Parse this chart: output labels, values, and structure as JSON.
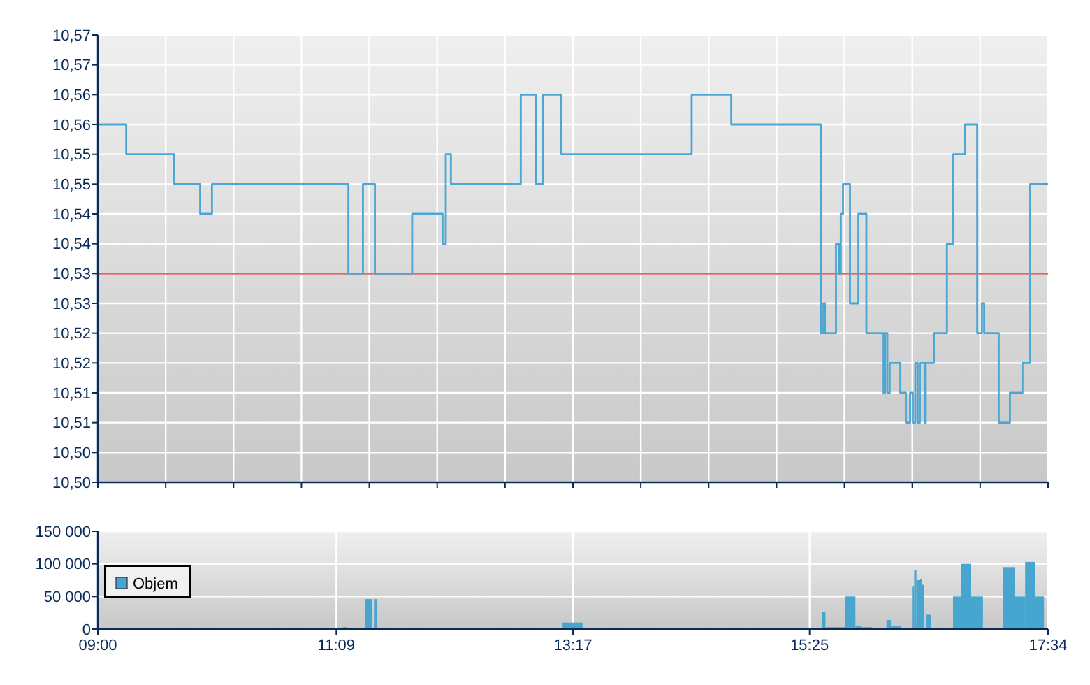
{
  "chart_data": [
    {
      "type": "step",
      "xlim": [
        9,
        17.5667
      ],
      "ylim": [
        10.5,
        10.575
      ],
      "tick_labels": "y",
      "grid": true,
      "xticks": [
        {
          "value": 9,
          "label": null
        },
        {
          "value": 9.6119,
          "label": null
        },
        {
          "value": 10.2238,
          "label": null
        },
        {
          "value": 10.8357,
          "label": null
        },
        {
          "value": 11.4476,
          "label": null
        },
        {
          "value": 12.0595,
          "label": null
        },
        {
          "value": 12.6714,
          "label": null
        },
        {
          "value": 13.2833,
          "label": null
        },
        {
          "value": 13.8952,
          "label": null
        },
        {
          "value": 14.5071,
          "label": null
        },
        {
          "value": 15.119,
          "label": null
        },
        {
          "value": 15.7309,
          "label": null
        },
        {
          "value": 16.3428,
          "label": null
        },
        {
          "value": 16.9547,
          "label": null
        },
        {
          "value": 17.5667,
          "label": null
        }
      ],
      "yticks": [
        {
          "value": 10.5,
          "label": "10,50"
        },
        {
          "value": 10.505,
          "label": "10,50"
        },
        {
          "value": 10.51,
          "label": "10,51"
        },
        {
          "value": 10.515,
          "label": "10,51"
        },
        {
          "value": 10.52,
          "label": "10,52"
        },
        {
          "value": 10.525,
          "label": "10,52"
        },
        {
          "value": 10.53,
          "label": "10,53"
        },
        {
          "value": 10.535,
          "label": "10,53"
        },
        {
          "value": 10.54,
          "label": "10,54"
        },
        {
          "value": 10.545,
          "label": "10,54"
        },
        {
          "value": 10.55,
          "label": "10,55"
        },
        {
          "value": 10.555,
          "label": "10,55"
        },
        {
          "value": 10.56,
          "label": "10,56"
        },
        {
          "value": 10.565,
          "label": "10,56"
        },
        {
          "value": 10.57,
          "label": "10,57"
        },
        {
          "value": 10.575,
          "label": "10,57"
        }
      ],
      "ref_lines": [
        {
          "axis": "y",
          "value": 10.535,
          "color": "#e06666"
        }
      ],
      "series": [
        {
          "color": "#4aa6d4",
          "x": [
            9,
            9.256,
            9.689,
            9.923,
            10.029,
            11.259,
            11.39,
            11.498,
            11.834,
            12.108,
            12.137,
            12.183,
            12.813,
            12.947,
            13.01,
            13.179,
            14.354,
            14.711,
            15.517,
            15.542,
            15.555,
            15.655,
            15.685,
            15.698,
            15.718,
            15.781,
            15.857,
            15.929,
            16.084,
            16.097,
            16.118,
            16.139,
            16.235,
            16.285,
            16.323,
            16.348,
            16.37,
            16.391,
            16.411,
            16.454,
            16.464,
            16.537,
            16.655,
            16.713,
            16.819,
            16.928,
            16.97,
            16.991,
            17.122,
            17.223,
            17.336,
            17.406,
            17.5667
          ],
          "values": [
            10.56,
            10.555,
            10.55,
            10.545,
            10.55,
            10.535,
            10.55,
            10.535,
            10.545,
            10.54,
            10.555,
            10.55,
            10.565,
            10.55,
            10.565,
            10.555,
            10.565,
            10.56,
            10.525,
            10.53,
            10.525,
            10.54,
            10.535,
            10.545,
            10.55,
            10.53,
            10.545,
            10.525,
            10.515,
            10.525,
            10.515,
            10.52,
            10.515,
            10.51,
            10.515,
            10.51,
            10.52,
            10.51,
            10.52,
            10.51,
            10.52,
            10.525,
            10.54,
            10.555,
            10.56,
            10.525,
            10.53,
            10.525,
            10.51,
            10.515,
            10.52,
            10.55,
            10.55
          ]
        }
      ]
    },
    {
      "type": "histogram",
      "xlim": [
        9,
        17.5667
      ],
      "ylim": [
        0,
        150000
      ],
      "grid": true,
      "legend": "left",
      "xticks": [
        {
          "value": 9,
          "label": "09:00"
        },
        {
          "value": 11.15,
          "label": "11:09"
        },
        {
          "value": 13.2833,
          "label": "13:17"
        },
        {
          "value": 15.4167,
          "label": "15:25"
        },
        {
          "value": 17.5667,
          "label": "17:34"
        }
      ],
      "yticks": [
        {
          "value": 0,
          "label": "0"
        },
        {
          "value": 50000,
          "label": "50 000"
        },
        {
          "value": 100000,
          "label": "100 000"
        },
        {
          "value": 150000,
          "label": "150 000"
        }
      ],
      "bins": [
        11.21,
        11.25,
        11.41,
        11.47,
        11.49,
        11.52,
        13.19,
        13.37,
        13.42,
        14.05,
        15.19,
        15.53,
        15.56,
        15.74,
        15.83,
        15.88,
        15.98,
        16.11,
        16.15,
        16.24,
        16.34,
        16.36,
        16.38,
        16.41,
        16.43,
        16.45,
        16.47,
        16.51,
        16.59,
        16.71,
        16.78,
        16.87,
        16.98,
        17.16,
        17.27,
        17.36,
        17.45,
        17.53
      ],
      "series": [
        {
          "name": "Objem",
          "color": "#46a6d0",
          "values": [
            3000,
            0,
            46000,
            0,
            46000,
            0,
            10000,
            0,
            2000,
            0,
            2000,
            26000,
            3000,
            50000,
            5000,
            3000,
            0,
            14000,
            5000,
            0,
            65000,
            90000,
            75000,
            77000,
            68000,
            0,
            22000,
            0,
            2000,
            50000,
            100000,
            50000,
            0,
            95000,
            50000,
            103000,
            50000
          ]
        }
      ]
    }
  ]
}
